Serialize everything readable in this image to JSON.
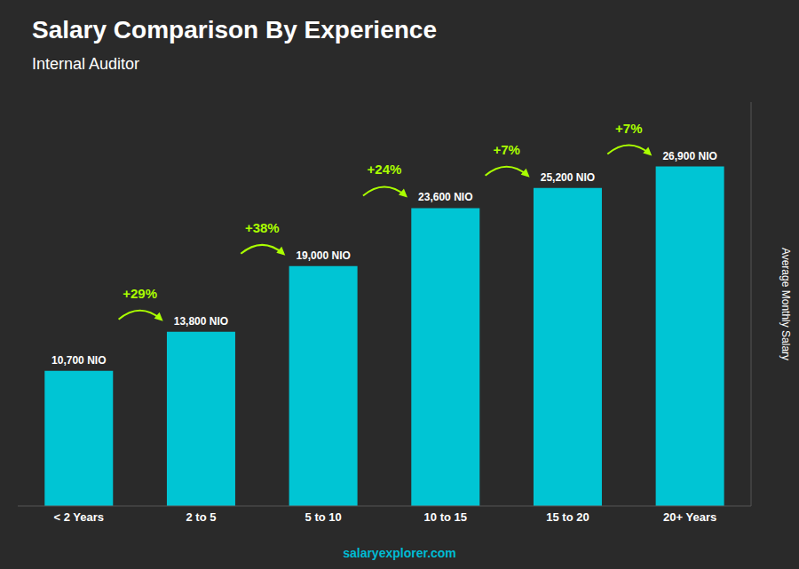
{
  "chart_data": {
    "type": "bar",
    "title": "Salary Comparison By Experience",
    "subtitle": "Internal Auditor",
    "categories": [
      "< 2 Years",
      "2 to 5",
      "5 to 10",
      "10 to 15",
      "15 to 20",
      "20+ Years"
    ],
    "values": [
      10700,
      13800,
      19000,
      23600,
      25200,
      26900
    ],
    "value_labels": [
      "10,700 NIO",
      "13,800 NIO",
      "19,000 NIO",
      "23,600 NIO",
      "25,200 NIO",
      "26,900 NIO"
    ],
    "data_labels": true,
    "color": "#00c5d4",
    "annotations": [
      {
        "text": "+29%",
        "color": "#aaff00"
      },
      {
        "text": "+38%",
        "color": "#aaff00"
      },
      {
        "text": "+24%",
        "color": "#aaff00"
      },
      {
        "text": "+7%",
        "color": "#aaff00"
      },
      {
        "text": "+7%",
        "color": "#aaff00"
      }
    ],
    "ylabel": "Average Monthly Salary",
    "ylim": [
      0,
      32000
    ],
    "tick_labels": "x",
    "grid": false,
    "footer": {
      "text": "salaryexplorer.com",
      "color": "#00bcd4"
    }
  }
}
